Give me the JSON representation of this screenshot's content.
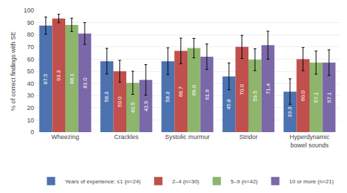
{
  "chart_data": {
    "type": "bar",
    "categories": [
      "Wheezing",
      "Crackles",
      "Systolic murmur",
      "Stridor",
      "Hyperdynamic\nbowel sounds"
    ],
    "series": [
      {
        "name": "Years of experience: ≤1 (n=24)",
        "color": "#4C72B0",
        "values": [
          87.5,
          58.3,
          58.3,
          45.8,
          33.3
        ],
        "value_labels": [
          "87.5",
          "58.3",
          "58.3",
          "45.8",
          "33.3"
        ],
        "errors": [
          7.0,
          10.5,
          11.0,
          11.0,
          10.5
        ]
      },
      {
        "name": "2–4 (n=30)",
        "color": "#C0504D",
        "values": [
          93.3,
          50.0,
          66.7,
          70.0,
          60.0
        ],
        "value_labels": [
          "93.3",
          "50.0",
          "66.7",
          "70.0",
          "60.0"
        ],
        "errors": [
          3.5,
          9.0,
          10.5,
          9.5,
          9.5
        ]
      },
      {
        "name": "5–9 (n=42)",
        "color": "#8DB56C",
        "values": [
          88.1,
          40.5,
          69.0,
          59.5,
          57.1
        ],
        "value_labels": [
          "88.1",
          "40.5",
          "69.0",
          "59.5",
          "57.1"
        ],
        "errors": [
          5.5,
          9.5,
          8.0,
          9.0,
          9.5
        ]
      },
      {
        "name": "10 or more (n=21)",
        "color": "#7B68A8",
        "values": [
          81.0,
          42.9,
          61.9,
          71.4,
          57.1
        ],
        "value_labels": [
          "81.0",
          "42.9",
          "61.9",
          "71.4",
          "57.1"
        ],
        "errors": [
          9.0,
          12.5,
          10.5,
          11.5,
          10.5
        ]
      }
    ],
    "ylabel": "% of correct findings with SE",
    "ylim": [
      0,
      100
    ],
    "yticks": [
      0,
      10,
      20,
      30,
      40,
      50,
      60,
      70,
      80,
      90,
      100
    ],
    "grid": true,
    "legend": "bottom",
    "data_labels": true
  }
}
